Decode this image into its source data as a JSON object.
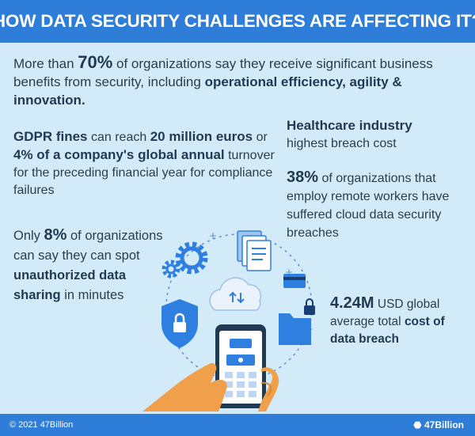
{
  "header": {
    "title": "HOW DATA SECURITY CHALLENGES ARE AFFECTING IT?"
  },
  "intro": {
    "t1": "More than ",
    "percent": "70%",
    "t2": " of organizations say they receive significant business benefits from security, including ",
    "highlight": "operational efficiency, agility & innovation."
  },
  "gdpr": {
    "b1": "GDPR fines",
    "t1": " can reach ",
    "b2": "20 million euros",
    "t2": " or ",
    "b3": "4% of a company's global annual",
    "t3": " turnover for the preceding financial year for compliance failures"
  },
  "healthcare": {
    "title": "Healthcare industry",
    "subtitle": "highest breach cost"
  },
  "remote": {
    "percent": "38%",
    "text": " of organizations that employ remote workers have suffered cloud data security breaches"
  },
  "only": {
    "t1": "Only ",
    "percent": "8%",
    "t2": " of organizations can say they can spot ",
    "highlight": "unauthorized data sharing",
    "t3": " in minutes"
  },
  "cost": {
    "value": "4.24M",
    "t1": " USD global average total ",
    "highlight": "cost of data breach"
  },
  "footer": {
    "copyright": "© 2021 47Billion",
    "brand": "47Billion"
  },
  "colors": {
    "background": "#d3ebf8",
    "banner": "#2e7dd8",
    "icon_blue": "#2f7fe0",
    "hand": "#f0a04b"
  },
  "illustration": {
    "icons": [
      "gear-icon",
      "document-stack-icon",
      "credit-card-icon",
      "cloud-sync-icon",
      "shield-lock-icon",
      "folder-lock-icon",
      "smartphone-icon",
      "hand-icon"
    ]
  }
}
